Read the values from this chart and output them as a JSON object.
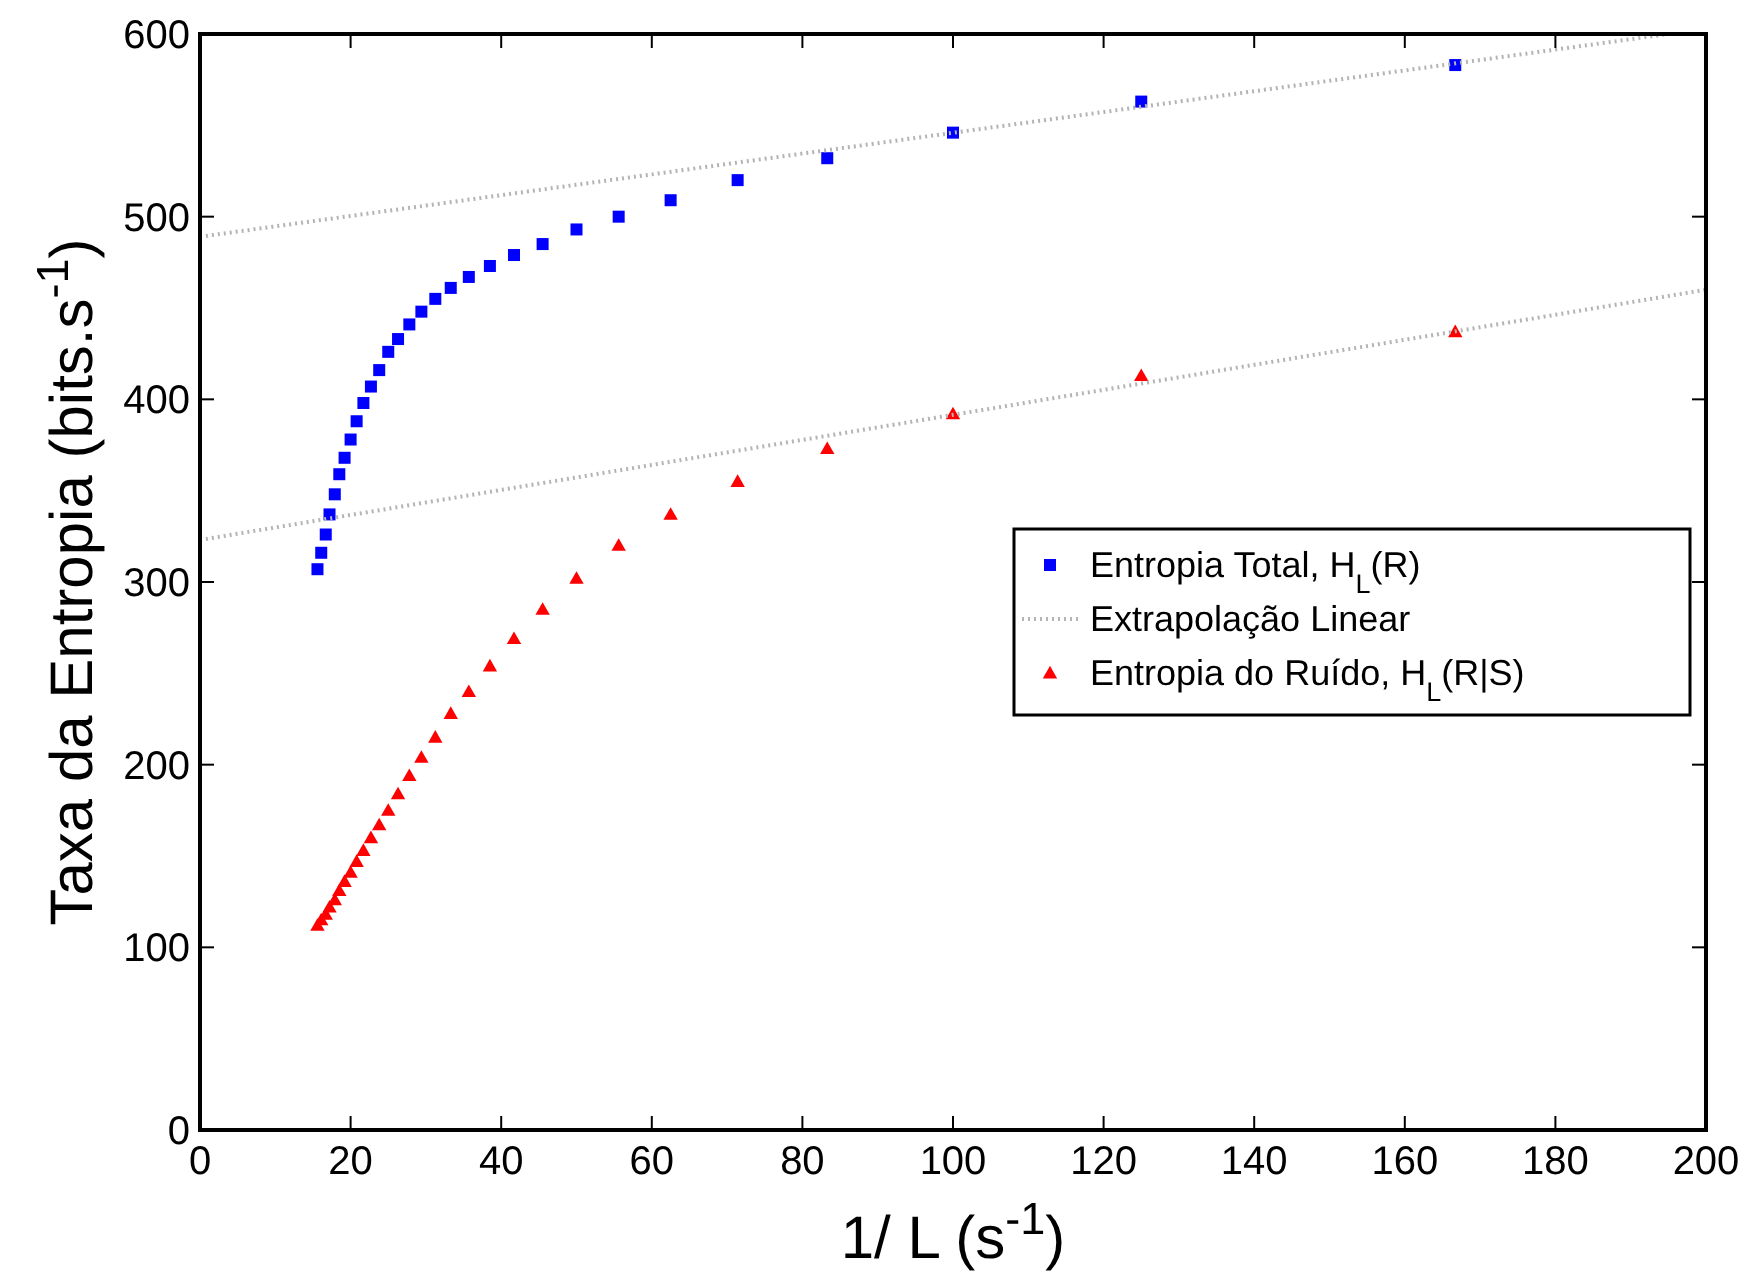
{
  "chart_data": {
    "type": "scatter",
    "xlabel": "1/ L (s$^{-1}$)",
    "ylabel": "Taxa da Entropia (bits.s$^{-1}$)",
    "xlim": [
      0,
      200
    ],
    "ylim": [
      0,
      600
    ],
    "xticks": [
      0,
      20,
      40,
      60,
      80,
      100,
      120,
      140,
      160,
      180,
      200
    ],
    "yticks": [
      0,
      100,
      200,
      300,
      400,
      500,
      600
    ],
    "grid": false,
    "legend": "right",
    "series": [
      {
        "name": "Entropia Total, H$_{L}$(R)",
        "marker": "square",
        "color": "#0000ff",
        "x": [
          166.7,
          125,
          100,
          83.3,
          71.4,
          62.5,
          55.6,
          50,
          45.5,
          41.7,
          38.5,
          35.7,
          33.3,
          31.25,
          29.4,
          27.8,
          26.3,
          25,
          23.8,
          22.7,
          21.7,
          20.8,
          20,
          19.2,
          18.5,
          17.9,
          17.2,
          16.7,
          16.1,
          15.6
        ],
        "values": [
          583,
          563,
          546,
          532,
          520,
          509,
          500,
          493,
          485,
          479,
          473,
          467,
          461,
          455,
          448,
          441,
          433,
          426,
          416,
          407,
          398,
          388,
          378,
          368,
          359,
          348,
          337,
          326,
          316,
          307
        ]
      },
      {
        "name": "Extrapolação Linear",
        "type": "line",
        "marker": "none",
        "line_style": "dotted",
        "color": "#b4b4b4",
        "x": [
          0,
          195
        ],
        "values": [
          489,
          600
        ]
      },
      {
        "name": "Entropia do Ruído, H$_{L}$(R|S)",
        "marker": "triangle",
        "color": "#ff0000",
        "x": [
          166.7,
          125,
          100,
          83.3,
          71.4,
          62.5,
          55.6,
          50,
          45.5,
          41.7,
          38.5,
          35.7,
          33.3,
          31.25,
          29.4,
          27.8,
          26.3,
          25,
          23.8,
          22.7,
          21.7,
          20.8,
          20,
          19.2,
          18.5,
          17.9,
          17.2,
          16.7,
          16.1,
          15.6
        ],
        "values": [
          437,
          413,
          392,
          373,
          355,
          337,
          320,
          302,
          285,
          269,
          254,
          240,
          228,
          215,
          204,
          194,
          184,
          175,
          167,
          160,
          153,
          147,
          141,
          136,
          131,
          126,
          122,
          118,
          115,
          112
        ]
      },
      {
        "type": "line",
        "marker": "none",
        "line_style": "dotted",
        "color": "#b4b4b4",
        "x": [
          0,
          200
        ],
        "values": [
          323,
          460
        ]
      }
    ]
  }
}
